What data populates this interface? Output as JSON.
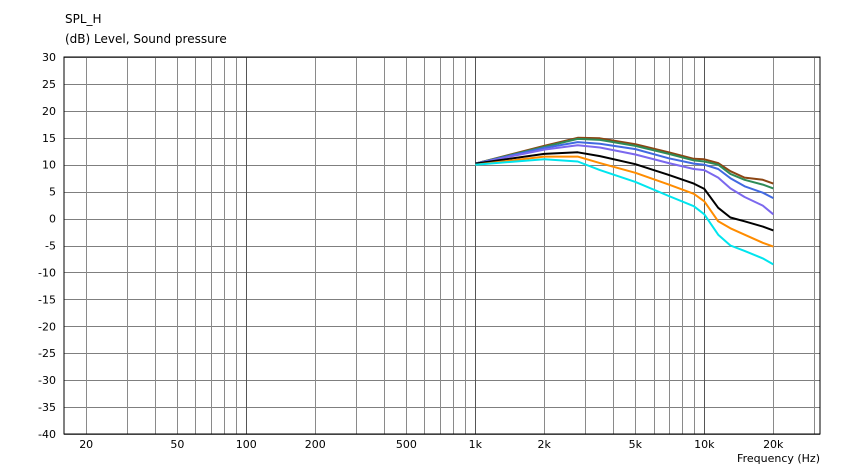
{
  "chart_data": {
    "type": "line",
    "title": "SPL_H",
    "ylabel": "(dB)  Level, Sound pressure",
    "xlabel": "Frequency  (Hz)",
    "x_scale": "log",
    "xlim": [
      16,
      32000
    ],
    "ylim": [
      -40,
      30
    ],
    "grid": true,
    "legend": "none",
    "x_ticks": [
      20,
      50,
      100,
      200,
      500,
      1000,
      2000,
      5000,
      10000,
      20000
    ],
    "x_tick_labels": [
      "20",
      "50",
      "100",
      "200",
      "500",
      "1k",
      "2k",
      "5k",
      "10k",
      "20k"
    ],
    "y_ticks": [
      30,
      25,
      20,
      15,
      10,
      5,
      0,
      -5,
      -10,
      -15,
      -20,
      -25,
      -30,
      -35,
      -40
    ],
    "series": [
      {
        "color": "#8b4513",
        "x": [
          1000,
          2000,
          2800,
          3500,
          5000,
          7000,
          9000,
          10000,
          11500,
          13000,
          15000,
          18000,
          20000
        ],
        "y": [
          10.2,
          13.5,
          15.0,
          14.9,
          13.8,
          12.3,
          11.1,
          11.0,
          10.3,
          8.8,
          7.6,
          7.2,
          6.5
        ]
      },
      {
        "color": "#2e8b57",
        "x": [
          1000,
          2000,
          2800,
          3500,
          5000,
          7000,
          9000,
          10000,
          11500,
          13000,
          15000,
          18000,
          20000
        ],
        "y": [
          10.2,
          13.3,
          14.8,
          14.6,
          13.5,
          12.0,
          10.8,
          10.6,
          10.0,
          8.3,
          7.2,
          6.3,
          5.6
        ]
      },
      {
        "color": "#4169e1",
        "x": [
          1000,
          2000,
          2800,
          3500,
          5000,
          7000,
          9000,
          10000,
          11500,
          13000,
          15000,
          18000,
          20000
        ],
        "y": [
          10.2,
          13.1,
          14.2,
          13.9,
          12.9,
          11.2,
          10.2,
          10.0,
          9.2,
          7.5,
          6.0,
          4.8,
          3.8
        ]
      },
      {
        "color": "#7b68ee",
        "x": [
          1000,
          2000,
          2800,
          3500,
          5000,
          7000,
          9000,
          10000,
          11500,
          13000,
          15000,
          18000,
          20000
        ],
        "y": [
          10.2,
          12.8,
          13.6,
          13.2,
          11.9,
          10.3,
          9.2,
          9.0,
          7.6,
          5.6,
          4.0,
          2.4,
          0.8
        ]
      },
      {
        "color": "#000000",
        "x": [
          1000,
          2000,
          2800,
          3500,
          5000,
          7000,
          9000,
          10000,
          11500,
          13000,
          15000,
          18000,
          20000
        ],
        "y": [
          10.2,
          12.0,
          12.3,
          11.6,
          10.1,
          8.1,
          6.5,
          5.5,
          2.0,
          0.2,
          -0.5,
          -1.5,
          -2.2
        ]
      },
      {
        "color": "#ff8c00",
        "x": [
          1000,
          2000,
          2800,
          3500,
          5000,
          7000,
          9000,
          10000,
          11500,
          13000,
          15000,
          18000,
          20000
        ],
        "y": [
          10.0,
          11.5,
          11.5,
          10.3,
          8.5,
          6.3,
          4.6,
          3.2,
          -0.5,
          -1.8,
          -3.0,
          -4.5,
          -5.2
        ]
      },
      {
        "color": "#00e5ee",
        "x": [
          1000,
          2000,
          2800,
          3500,
          5000,
          7000,
          9000,
          10000,
          11500,
          13000,
          15000,
          18000,
          20000
        ],
        "y": [
          10.0,
          11.0,
          10.6,
          9.0,
          6.8,
          4.2,
          2.3,
          0.8,
          -3.0,
          -5.0,
          -6.0,
          -7.4,
          -8.5
        ]
      }
    ]
  }
}
